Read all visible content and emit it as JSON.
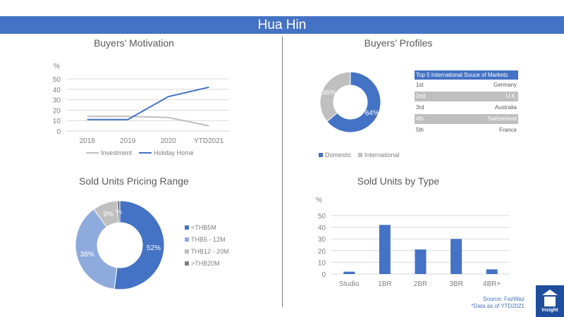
{
  "header": {
    "title": "Hua Hin"
  },
  "colors": {
    "blue": "#4472c4",
    "grey": "#bfbfbf",
    "lightblue": "#8faadc",
    "dark": "#7f7f7f",
    "logo": "#1f4e9c"
  },
  "table": {
    "header": "Top 5 International Souce of Markets",
    "rows": [
      {
        "rank": "1st",
        "country": "Germany"
      },
      {
        "rank": "2nd",
        "country": "U.K."
      },
      {
        "rank": "3rd",
        "country": "Australia"
      },
      {
        "rank": "4th",
        "country": "Switzerland"
      },
      {
        "rank": "5th",
        "country": "France"
      }
    ]
  },
  "source": {
    "line1": "Source: FazWaz",
    "line2": "*Data as of YTD2021"
  },
  "logo": {
    "text": "Insight"
  },
  "chart_data": [
    {
      "type": "line",
      "title": "Buyers’ Motivation",
      "ylabel": "%",
      "ylim": [
        0,
        50
      ],
      "yticks": [
        "0",
        "10",
        "20",
        "30",
        "40",
        "50"
      ],
      "categories": [
        "2018",
        "2019",
        "2020",
        "YTD2021"
      ],
      "series": [
        {
          "name": "Investment",
          "values": [
            14,
            14,
            13,
            5
          ],
          "color": "#bfbfbf"
        },
        {
          "name": "Holiday Home",
          "values": [
            11,
            11,
            33,
            42
          ],
          "color": "#4472c4"
        }
      ]
    },
    {
      "type": "pie",
      "title": "Buyers’ Profiles",
      "categories": [
        "Domestic",
        "International"
      ],
      "values": [
        64,
        36
      ],
      "labels": [
        "64%",
        "36%"
      ],
      "colors": [
        "#4472c4",
        "#bfbfbf"
      ]
    },
    {
      "type": "pie",
      "title": "Sold Units Pricing Range",
      "categories": [
        "<THB5M",
        "THB5 - 12M",
        "THB12 - 20M",
        ">THB20M"
      ],
      "values": [
        52,
        38,
        9,
        1
      ],
      "labels": [
        "52%",
        "38%",
        "9%",
        "%"
      ],
      "colors": [
        "#4472c4",
        "#8faadc",
        "#bfbfbf",
        "#7f7f7f"
      ]
    },
    {
      "type": "bar",
      "title": "Sold Units by Type",
      "ylabel": "%",
      "ylim": [
        0,
        50
      ],
      "yticks": [
        "0",
        "10",
        "20",
        "30",
        "40",
        "50"
      ],
      "categories": [
        "Studio",
        "1BR",
        "2BR",
        "3BR",
        "4BR+"
      ],
      "values": [
        2,
        42,
        21,
        30,
        4
      ],
      "color": "#4472c4"
    }
  ]
}
